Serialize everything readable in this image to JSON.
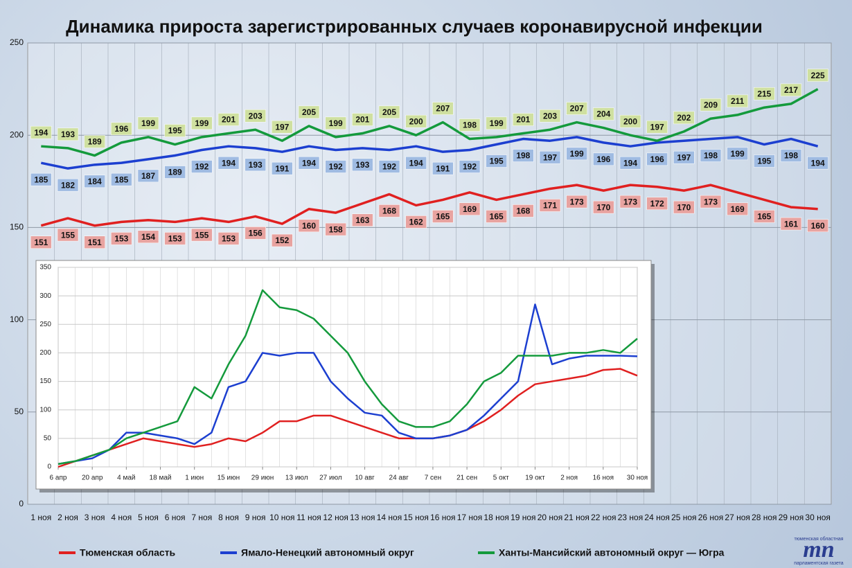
{
  "chart_data": [
    {
      "type": "line",
      "title": "Динамика прироста зарегистрированных случаев коронавирусной инфекции",
      "categories": [
        "1 ноя",
        "2 ноя",
        "3 ноя",
        "4 ноя",
        "5 ноя",
        "6 ноя",
        "7 ноя",
        "8 ноя",
        "9 ноя",
        "10 ноя",
        "11 ноя",
        "12 ноя",
        "13 ноя",
        "14 ноя",
        "15 ноя",
        "16 ноя",
        "17 ноя",
        "18 ноя",
        "19 ноя",
        "20 ноя",
        "21 ноя",
        "22 ноя",
        "23 ноя",
        "24 ноя",
        "25 ноя",
        "26 ноя",
        "27 ноя",
        "28 ноя",
        "29 ноя",
        "30 ноя"
      ],
      "series": [
        {
          "name": "Тюменская область",
          "color": "#e02020",
          "label_color": "#e8a3a0",
          "values": [
            151,
            155,
            151,
            153,
            154,
            153,
            155,
            153,
            156,
            152,
            160,
            158,
            163,
            168,
            162,
            165,
            169,
            165,
            168,
            171,
            173,
            170,
            173,
            172,
            170,
            173,
            169,
            165,
            161,
            160
          ]
        },
        {
          "name": "Ямало-Ненецкий автономный округ",
          "color": "#1c3fd0",
          "label_color": "#9fbbe2",
          "values": [
            185,
            182,
            184,
            185,
            187,
            189,
            192,
            194,
            193,
            191,
            194,
            192,
            193,
            192,
            194,
            191,
            192,
            195,
            198,
            197,
            199,
            196,
            194,
            196,
            197,
            198,
            199,
            195,
            198,
            194
          ]
        },
        {
          "name": "Ханты-Мансийский автономный округ — Югра",
          "color": "#149a3c",
          "label_color": "#cfe0a0",
          "values": [
            194,
            193,
            189,
            196,
            199,
            195,
            199,
            201,
            203,
            197,
            205,
            199,
            201,
            205,
            200,
            207,
            198,
            199,
            201,
            203,
            207,
            204,
            200,
            197,
            202,
            209,
            211,
            215,
            217,
            225
          ]
        }
      ],
      "ylim": [
        0,
        250
      ],
      "yticks": [
        0,
        50,
        100,
        150,
        200,
        250
      ],
      "grid": true
    },
    {
      "type": "line",
      "x": [
        0,
        7,
        14,
        21,
        28,
        35,
        42,
        49,
        56,
        63,
        70,
        77,
        84,
        91,
        98,
        105,
        112,
        119,
        126,
        133,
        140,
        147,
        154,
        161,
        168,
        175,
        182,
        189,
        196,
        203,
        210,
        217,
        224,
        231,
        238
      ],
      "series": [
        {
          "color": "#e02020",
          "values": [
            0,
            10,
            20,
            30,
            40,
            50,
            45,
            40,
            35,
            40,
            50,
            45,
            60,
            80,
            80,
            90,
            90,
            80,
            70,
            60,
            50,
            50,
            50,
            55,
            65,
            80,
            100,
            125,
            145,
            150,
            155,
            160,
            170,
            172,
            160
          ]
        },
        {
          "color": "#1c3fd0",
          "values": [
            5,
            10,
            15,
            30,
            60,
            60,
            55,
            50,
            40,
            60,
            140,
            150,
            200,
            195,
            200,
            200,
            150,
            120,
            95,
            90,
            60,
            50,
            50,
            55,
            65,
            90,
            120,
            150,
            285,
            180,
            190,
            195,
            195,
            195,
            194
          ]
        },
        {
          "color": "#149a3c",
          "values": [
            5,
            10,
            20,
            30,
            50,
            60,
            70,
            80,
            140,
            120,
            180,
            230,
            310,
            280,
            275,
            260,
            230,
            200,
            150,
            110,
            80,
            70,
            70,
            80,
            110,
            150,
            165,
            195,
            195,
            195,
            200,
            200,
            205,
            200,
            225
          ]
        }
      ],
      "xlim": [
        0,
        238
      ],
      "xticks": [
        {
          "value": 0,
          "label": "6 апр"
        },
        {
          "value": 14,
          "label": "20 апр"
        },
        {
          "value": 28,
          "label": "4 май"
        },
        {
          "value": 42,
          "label": "18 май"
        },
        {
          "value": 56,
          "label": "1 июн"
        },
        {
          "value": 70,
          "label": "15 июн"
        },
        {
          "value": 84,
          "label": "29 июн"
        },
        {
          "value": 98,
          "label": "13 июл"
        },
        {
          "value": 112,
          "label": "27 июл"
        },
        {
          "value": 126,
          "label": "10 авг"
        },
        {
          "value": 140,
          "label": "24 авг"
        },
        {
          "value": 154,
          "label": "7 сен"
        },
        {
          "value": 168,
          "label": "21 сен"
        },
        {
          "value": 182,
          "label": "5 окт"
        },
        {
          "value": 196,
          "label": "19 окт"
        },
        {
          "value": 210,
          "label": "2 ноя"
        },
        {
          "value": 224,
          "label": "16 ноя"
        },
        {
          "value": 238,
          "label": "30 ноя"
        }
      ],
      "ylim": [
        0,
        350
      ],
      "yticks": [
        0,
        50,
        100,
        150,
        200,
        250,
        300,
        350
      ],
      "grid": true
    }
  ],
  "logo": {
    "mark": "тп",
    "caption_top": "тюменская областная",
    "caption_bottom": "парламентская газета"
  }
}
